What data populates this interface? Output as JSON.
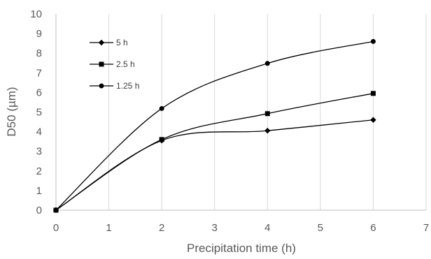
{
  "chart_data": {
    "type": "line",
    "title": "",
    "xlabel": "Precipitation time (h)",
    "ylabel": "D50 (µm)",
    "xlim": [
      0,
      7
    ],
    "ylim": [
      0,
      10
    ],
    "x_ticks": [
      0,
      1,
      2,
      3,
      4,
      5,
      6,
      7
    ],
    "y_ticks": [
      0,
      1,
      2,
      3,
      4,
      5,
      6,
      7,
      8,
      9,
      10
    ],
    "grid": "vertical-major",
    "legend_position": "top-left",
    "smooth": true,
    "series": [
      {
        "name": "5 h",
        "marker": "diamond",
        "x": [
          0,
          2,
          4,
          6
        ],
        "y": [
          0,
          3.55,
          4.05,
          4.6
        ]
      },
      {
        "name": "2.5 h",
        "marker": "square",
        "x": [
          0,
          2,
          4,
          6
        ],
        "y": [
          0,
          3.6,
          4.92,
          5.95
        ]
      },
      {
        "name": "1.25 h",
        "marker": "circle",
        "x": [
          0,
          2,
          4,
          6
        ],
        "y": [
          0,
          5.18,
          7.48,
          8.6
        ]
      }
    ],
    "line_color": "#000000",
    "grid_color": "#d9d9d9"
  }
}
